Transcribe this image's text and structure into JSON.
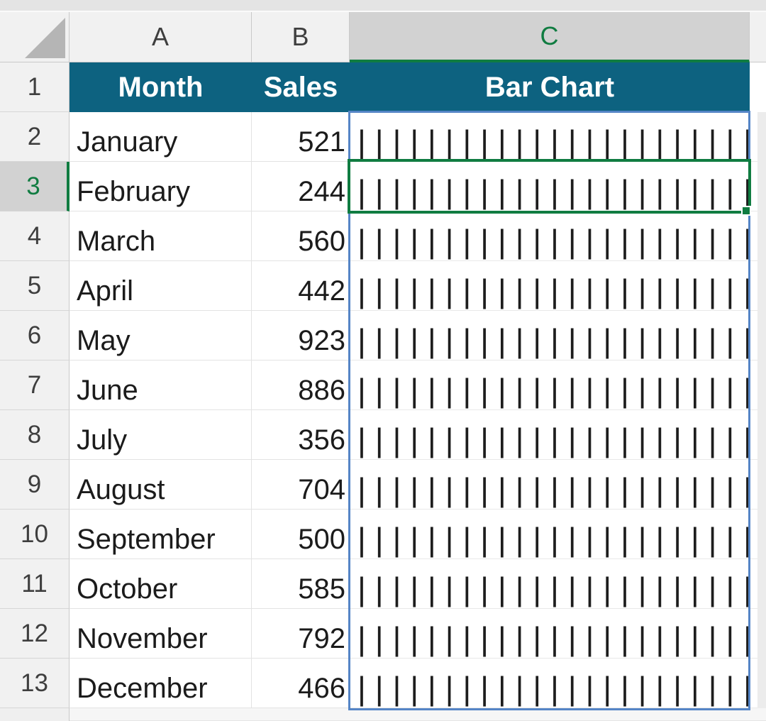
{
  "grid": {
    "column_headers": [
      "A",
      "B",
      "C"
    ],
    "row_numbers": [
      "1",
      "2",
      "3",
      "4",
      "5",
      "6",
      "7",
      "8",
      "9",
      "10",
      "11",
      "12",
      "13"
    ]
  },
  "table": {
    "header": {
      "month": "Month",
      "sales": "Sales",
      "bar": "Bar Chart"
    },
    "rows": [
      {
        "month": "January",
        "sales": "521"
      },
      {
        "month": "February",
        "sales": "244"
      },
      {
        "month": "March",
        "sales": "560"
      },
      {
        "month": "April",
        "sales": "442"
      },
      {
        "month": "May",
        "sales": "923"
      },
      {
        "month": "June",
        "sales": "886"
      },
      {
        "month": "July",
        "sales": "356"
      },
      {
        "month": "August",
        "sales": "704"
      },
      {
        "month": "September",
        "sales": "500"
      },
      {
        "month": "October",
        "sales": "585"
      },
      {
        "month": "November",
        "sales": "792"
      },
      {
        "month": "December",
        "sales": "466"
      }
    ]
  },
  "bar_cell": {
    "glyph": "|",
    "separator": " ",
    "repeat": 40
  },
  "selection": {
    "active_cell": "C3",
    "selected_column_letter": "C",
    "selected_row_number": "3"
  },
  "colors": {
    "table_header_fill": "#0d6280",
    "table_header_text": "#ffffff",
    "selection_green": "#107c41",
    "range_border_blue": "#5585c6",
    "selected_header_bg": "#d2d2d2",
    "header_bg": "#f1f1f1",
    "cell_text": "#1b1b1b"
  }
}
